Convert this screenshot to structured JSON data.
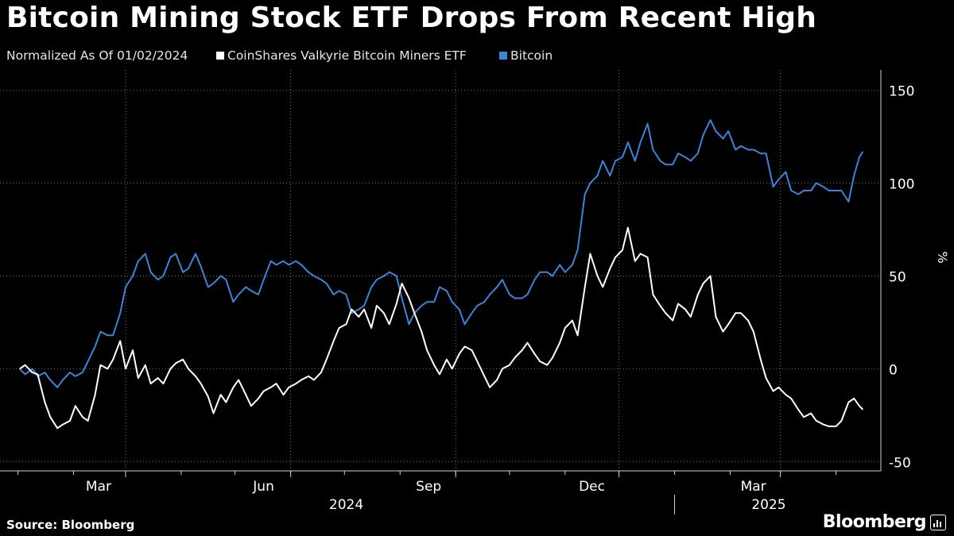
{
  "header": {
    "title": "Bitcoin Mining Stock ETF Drops From Recent High",
    "subtitle": "Normalized As Of 01/02/2024"
  },
  "footer": {
    "source": "Source: Bloomberg",
    "brand": "Bloomberg"
  },
  "colors": {
    "background": "#000000",
    "etf": "#ffffff",
    "bitcoin": "#3a85d6",
    "grid": "#777777"
  },
  "chart_data": {
    "type": "line",
    "title": "Bitcoin Mining Stock ETF Drops From Recent High",
    "subtitle": "Normalized As Of 01/02/2024",
    "ylabel": "%",
    "ylim": [
      -50,
      150
    ],
    "y_ticks": [
      -50,
      0,
      50,
      100,
      150
    ],
    "y_tick_labels": [
      "-50",
      "0",
      "50",
      "100",
      "150"
    ],
    "x_range": [
      "2024-01-02",
      "2025-04-16"
    ],
    "x_ticks": [
      {
        "date": "2024-03-01",
        "label": "Mar"
      },
      {
        "date": "2024-06-01",
        "label": "Jun"
      },
      {
        "date": "2024-09-01",
        "label": "Sep"
      },
      {
        "date": "2024-12-01",
        "label": "Dec"
      },
      {
        "date": "2025-03-01",
        "label": "Mar"
      }
    ],
    "year_labels": [
      {
        "label": "2024",
        "from": "2024-01-02",
        "to": "2024-12-31"
      },
      {
        "label": "2025",
        "from": "2025-01-01",
        "to": "2025-04-16"
      }
    ],
    "grid": true,
    "legend": "top",
    "series": [
      {
        "name": "CoinShares Valkyrie Bitcoin Miners ETF",
        "color": "#ffffff",
        "points": [
          [
            "2024-01-02",
            0
          ],
          [
            "2024-01-05",
            2
          ],
          [
            "2024-01-09",
            -2
          ],
          [
            "2024-01-12",
            -3
          ],
          [
            "2024-01-16",
            -18
          ],
          [
            "2024-01-19",
            -26
          ],
          [
            "2024-01-23",
            -32
          ],
          [
            "2024-01-26",
            -30
          ],
          [
            "2024-01-30",
            -28
          ],
          [
            "2024-02-02",
            -20
          ],
          [
            "2024-02-06",
            -26
          ],
          [
            "2024-02-09",
            -28
          ],
          [
            "2024-02-13",
            -14
          ],
          [
            "2024-02-16",
            2
          ],
          [
            "2024-02-20",
            0
          ],
          [
            "2024-02-23",
            5
          ],
          [
            "2024-02-27",
            15
          ],
          [
            "2024-03-01",
            0
          ],
          [
            "2024-03-05",
            10
          ],
          [
            "2024-03-08",
            -5
          ],
          [
            "2024-03-12",
            2
          ],
          [
            "2024-03-15",
            -8
          ],
          [
            "2024-03-19",
            -5
          ],
          [
            "2024-03-22",
            -8
          ],
          [
            "2024-03-26",
            0
          ],
          [
            "2024-03-29",
            3
          ],
          [
            "2024-04-02",
            5
          ],
          [
            "2024-04-05",
            0
          ],
          [
            "2024-04-09",
            -4
          ],
          [
            "2024-04-12",
            -8
          ],
          [
            "2024-04-16",
            -15
          ],
          [
            "2024-04-19",
            -24
          ],
          [
            "2024-04-23",
            -14
          ],
          [
            "2024-04-26",
            -18
          ],
          [
            "2024-04-30",
            -10
          ],
          [
            "2024-05-03",
            -6
          ],
          [
            "2024-05-07",
            -14
          ],
          [
            "2024-05-10",
            -20
          ],
          [
            "2024-05-14",
            -16
          ],
          [
            "2024-05-17",
            -12
          ],
          [
            "2024-05-21",
            -10
          ],
          [
            "2024-05-24",
            -8
          ],
          [
            "2024-05-28",
            -14
          ],
          [
            "2024-05-31",
            -10
          ],
          [
            "2024-06-04",
            -8
          ],
          [
            "2024-06-07",
            -6
          ],
          [
            "2024-06-11",
            -4
          ],
          [
            "2024-06-14",
            -6
          ],
          [
            "2024-06-18",
            -2
          ],
          [
            "2024-06-21",
            5
          ],
          [
            "2024-06-25",
            15
          ],
          [
            "2024-06-28",
            22
          ],
          [
            "2024-07-02",
            24
          ],
          [
            "2024-07-05",
            32
          ],
          [
            "2024-07-09",
            28
          ],
          [
            "2024-07-12",
            32
          ],
          [
            "2024-07-16",
            22
          ],
          [
            "2024-07-19",
            34
          ],
          [
            "2024-07-23",
            30
          ],
          [
            "2024-07-26",
            24
          ],
          [
            "2024-07-30",
            35
          ],
          [
            "2024-08-02",
            46
          ],
          [
            "2024-08-06",
            38
          ],
          [
            "2024-08-09",
            30
          ],
          [
            "2024-08-13",
            20
          ],
          [
            "2024-08-16",
            10
          ],
          [
            "2024-08-20",
            2
          ],
          [
            "2024-08-23",
            -3
          ],
          [
            "2024-08-27",
            5
          ],
          [
            "2024-08-30",
            0
          ],
          [
            "2024-09-03",
            8
          ],
          [
            "2024-09-06",
            12
          ],
          [
            "2024-09-10",
            10
          ],
          [
            "2024-09-13",
            4
          ],
          [
            "2024-09-17",
            -4
          ],
          [
            "2024-09-20",
            -10
          ],
          [
            "2024-09-24",
            -6
          ],
          [
            "2024-09-27",
            0
          ],
          [
            "2024-10-01",
            2
          ],
          [
            "2024-10-04",
            6
          ],
          [
            "2024-10-08",
            10
          ],
          [
            "2024-10-11",
            14
          ],
          [
            "2024-10-15",
            8
          ],
          [
            "2024-10-18",
            4
          ],
          [
            "2024-10-22",
            2
          ],
          [
            "2024-10-25",
            6
          ],
          [
            "2024-10-29",
            14
          ],
          [
            "2024-11-01",
            22
          ],
          [
            "2024-11-05",
            26
          ],
          [
            "2024-11-08",
            18
          ],
          [
            "2024-11-12",
            44
          ],
          [
            "2024-11-15",
            62
          ],
          [
            "2024-11-19",
            50
          ],
          [
            "2024-11-22",
            44
          ],
          [
            "2024-11-26",
            54
          ],
          [
            "2024-11-29",
            60
          ],
          [
            "2024-12-03",
            64
          ],
          [
            "2024-12-06",
            76
          ],
          [
            "2024-12-10",
            58
          ],
          [
            "2024-12-13",
            62
          ],
          [
            "2024-12-17",
            60
          ],
          [
            "2024-12-20",
            40
          ],
          [
            "2024-12-24",
            34
          ],
          [
            "2024-12-27",
            30
          ],
          [
            "2024-12-31",
            26
          ],
          [
            "2025-01-03",
            35
          ],
          [
            "2025-01-07",
            32
          ],
          [
            "2025-01-10",
            28
          ],
          [
            "2025-01-14",
            40
          ],
          [
            "2025-01-17",
            46
          ],
          [
            "2025-01-21",
            50
          ],
          [
            "2025-01-24",
            28
          ],
          [
            "2025-01-28",
            20
          ],
          [
            "2025-01-31",
            24
          ],
          [
            "2025-02-04",
            30
          ],
          [
            "2025-02-07",
            30
          ],
          [
            "2025-02-11",
            26
          ],
          [
            "2025-02-14",
            20
          ],
          [
            "2025-02-18",
            5
          ],
          [
            "2025-02-21",
            -5
          ],
          [
            "2025-02-25",
            -12
          ],
          [
            "2025-02-28",
            -10
          ],
          [
            "2025-03-04",
            -14
          ],
          [
            "2025-03-07",
            -16
          ],
          [
            "2025-03-11",
            -22
          ],
          [
            "2025-03-14",
            -26
          ],
          [
            "2025-03-18",
            -24
          ],
          [
            "2025-03-21",
            -28
          ],
          [
            "2025-03-25",
            -30
          ],
          [
            "2025-03-28",
            -31
          ],
          [
            "2025-04-01",
            -31
          ],
          [
            "2025-04-04",
            -28
          ],
          [
            "2025-04-08",
            -18
          ],
          [
            "2025-04-11",
            -16
          ],
          [
            "2025-04-14",
            -20
          ],
          [
            "2025-04-16",
            -22
          ]
        ]
      },
      {
        "name": "Bitcoin",
        "color": "#3a85d6",
        "points": [
          [
            "2024-01-02",
            0
          ],
          [
            "2024-01-05",
            -3
          ],
          [
            "2024-01-09",
            0
          ],
          [
            "2024-01-12",
            -4
          ],
          [
            "2024-01-16",
            -2
          ],
          [
            "2024-01-19",
            -6
          ],
          [
            "2024-01-23",
            -10
          ],
          [
            "2024-01-26",
            -6
          ],
          [
            "2024-01-30",
            -2
          ],
          [
            "2024-02-02",
            -4
          ],
          [
            "2024-02-06",
            -2
          ],
          [
            "2024-02-09",
            4
          ],
          [
            "2024-02-13",
            12
          ],
          [
            "2024-02-16",
            20
          ],
          [
            "2024-02-20",
            18
          ],
          [
            "2024-02-23",
            18
          ],
          [
            "2024-02-27",
            30
          ],
          [
            "2024-03-01",
            44
          ],
          [
            "2024-03-05",
            50
          ],
          [
            "2024-03-08",
            58
          ],
          [
            "2024-03-12",
            62
          ],
          [
            "2024-03-15",
            52
          ],
          [
            "2024-03-19",
            48
          ],
          [
            "2024-03-22",
            50
          ],
          [
            "2024-03-26",
            60
          ],
          [
            "2024-03-29",
            62
          ],
          [
            "2024-04-02",
            52
          ],
          [
            "2024-04-05",
            54
          ],
          [
            "2024-04-09",
            62
          ],
          [
            "2024-04-12",
            55
          ],
          [
            "2024-04-16",
            44
          ],
          [
            "2024-04-19",
            46
          ],
          [
            "2024-04-23",
            50
          ],
          [
            "2024-04-26",
            48
          ],
          [
            "2024-04-30",
            36
          ],
          [
            "2024-05-03",
            40
          ],
          [
            "2024-05-07",
            44
          ],
          [
            "2024-05-10",
            42
          ],
          [
            "2024-05-14",
            40
          ],
          [
            "2024-05-17",
            48
          ],
          [
            "2024-05-21",
            58
          ],
          [
            "2024-05-24",
            56
          ],
          [
            "2024-05-28",
            58
          ],
          [
            "2024-05-31",
            56
          ],
          [
            "2024-06-04",
            58
          ],
          [
            "2024-06-07",
            56
          ],
          [
            "2024-06-11",
            52
          ],
          [
            "2024-06-14",
            50
          ],
          [
            "2024-06-18",
            48
          ],
          [
            "2024-06-21",
            46
          ],
          [
            "2024-06-25",
            40
          ],
          [
            "2024-06-28",
            42
          ],
          [
            "2024-07-02",
            40
          ],
          [
            "2024-07-05",
            30
          ],
          [
            "2024-07-09",
            32
          ],
          [
            "2024-07-12",
            34
          ],
          [
            "2024-07-16",
            44
          ],
          [
            "2024-07-19",
            48
          ],
          [
            "2024-07-23",
            50
          ],
          [
            "2024-07-26",
            52
          ],
          [
            "2024-07-30",
            50
          ],
          [
            "2024-08-02",
            38
          ],
          [
            "2024-08-06",
            24
          ],
          [
            "2024-08-09",
            30
          ],
          [
            "2024-08-13",
            34
          ],
          [
            "2024-08-16",
            36
          ],
          [
            "2024-08-20",
            36
          ],
          [
            "2024-08-23",
            44
          ],
          [
            "2024-08-27",
            42
          ],
          [
            "2024-08-30",
            36
          ],
          [
            "2024-09-03",
            32
          ],
          [
            "2024-09-06",
            24
          ],
          [
            "2024-09-10",
            30
          ],
          [
            "2024-09-13",
            34
          ],
          [
            "2024-09-17",
            36
          ],
          [
            "2024-09-20",
            40
          ],
          [
            "2024-09-24",
            44
          ],
          [
            "2024-09-27",
            48
          ],
          [
            "2024-10-01",
            40
          ],
          [
            "2024-10-04",
            38
          ],
          [
            "2024-10-08",
            38
          ],
          [
            "2024-10-11",
            40
          ],
          [
            "2024-10-15",
            48
          ],
          [
            "2024-10-18",
            52
          ],
          [
            "2024-10-22",
            52
          ],
          [
            "2024-10-25",
            50
          ],
          [
            "2024-10-29",
            56
          ],
          [
            "2024-11-01",
            52
          ],
          [
            "2024-11-05",
            56
          ],
          [
            "2024-11-08",
            64
          ],
          [
            "2024-11-12",
            94
          ],
          [
            "2024-11-15",
            100
          ],
          [
            "2024-11-19",
            104
          ],
          [
            "2024-11-22",
            112
          ],
          [
            "2024-11-26",
            104
          ],
          [
            "2024-11-29",
            112
          ],
          [
            "2024-12-03",
            114
          ],
          [
            "2024-12-06",
            122
          ],
          [
            "2024-12-10",
            112
          ],
          [
            "2024-12-13",
            122
          ],
          [
            "2024-12-17",
            132
          ],
          [
            "2024-12-20",
            118
          ],
          [
            "2024-12-24",
            112
          ],
          [
            "2024-12-27",
            110
          ],
          [
            "2024-12-31",
            110
          ],
          [
            "2025-01-03",
            116
          ],
          [
            "2025-01-07",
            114
          ],
          [
            "2025-01-10",
            112
          ],
          [
            "2025-01-14",
            116
          ],
          [
            "2025-01-17",
            126
          ],
          [
            "2025-01-21",
            134
          ],
          [
            "2025-01-24",
            128
          ],
          [
            "2025-01-28",
            124
          ],
          [
            "2025-01-31",
            128
          ],
          [
            "2025-02-04",
            118
          ],
          [
            "2025-02-07",
            120
          ],
          [
            "2025-02-11",
            118
          ],
          [
            "2025-02-14",
            118
          ],
          [
            "2025-02-18",
            116
          ],
          [
            "2025-02-21",
            116
          ],
          [
            "2025-02-25",
            98
          ],
          [
            "2025-02-28",
            102
          ],
          [
            "2025-03-04",
            106
          ],
          [
            "2025-03-07",
            96
          ],
          [
            "2025-03-11",
            94
          ],
          [
            "2025-03-14",
            96
          ],
          [
            "2025-03-18",
            96
          ],
          [
            "2025-03-21",
            100
          ],
          [
            "2025-03-25",
            98
          ],
          [
            "2025-03-28",
            96
          ],
          [
            "2025-04-01",
            96
          ],
          [
            "2025-04-04",
            96
          ],
          [
            "2025-04-08",
            90
          ],
          [
            "2025-04-11",
            104
          ],
          [
            "2025-04-14",
            114
          ],
          [
            "2025-04-16",
            117
          ]
        ]
      }
    ]
  }
}
